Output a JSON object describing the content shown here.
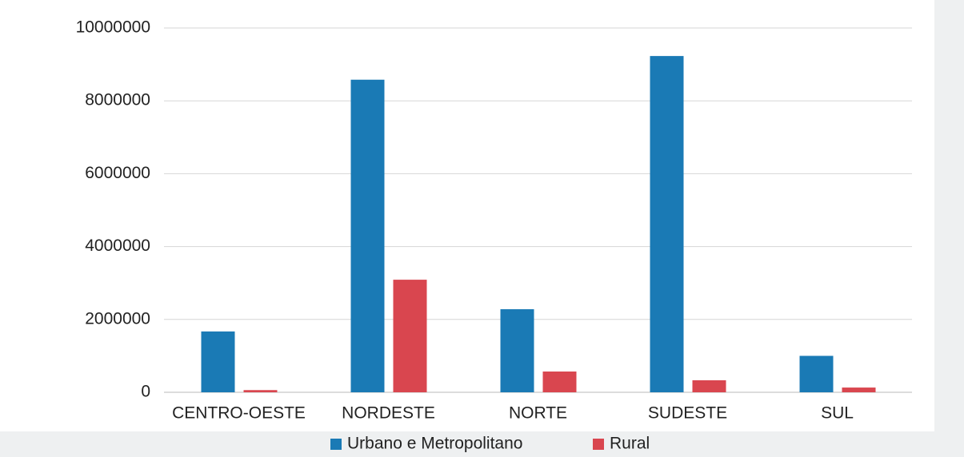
{
  "chart_data": {
    "type": "bar",
    "categories": [
      "CENTRO-OESTE",
      "NORDESTE",
      "NORTE",
      "SUDESTE",
      "SUL"
    ],
    "series": [
      {
        "name": "Urbano e Metropolitano",
        "color": "#1a7ab5",
        "values": [
          1670000,
          8580000,
          2280000,
          9230000,
          1000000
        ]
      },
      {
        "name": "Rural",
        "color": "#d9464f",
        "values": [
          60000,
          3090000,
          570000,
          330000,
          130000
        ]
      }
    ],
    "ylim": [
      0,
      10000000
    ],
    "yticks": [
      0,
      2000000,
      4000000,
      6000000,
      8000000,
      10000000
    ],
    "grid": true
  }
}
